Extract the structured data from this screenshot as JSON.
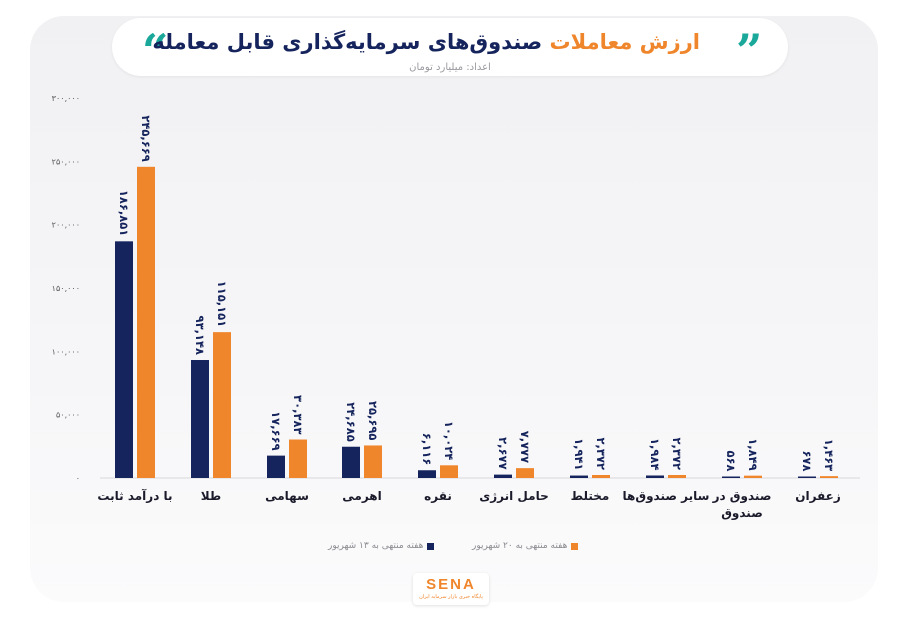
{
  "header": {
    "title_highlight": "ارزش معاملات",
    "title_rest": " صندوق‌های سرمایه‌گذاری قابل معامله",
    "subtitle": "اعداد: میلیارد تومان",
    "quote_left": "“",
    "quote_right": "”"
  },
  "legend": {
    "week13": "هفته منتهی به ۱۳ شهریور",
    "week20": "هفته منتهی به ۲۰ شهریور"
  },
  "logo": {
    "text": "SENA",
    "sub": "پایگاه خبری بازار سرمایه ایران"
  },
  "colors": {
    "week13": "#15245c",
    "week20": "#f0862b",
    "highlight": "#f0862b",
    "quote": "#1aa89a"
  },
  "chart_data": {
    "type": "bar",
    "categories": [
      "با درآمد ثابت",
      "طلا",
      "سهامی",
      "اهرمی",
      "نقره",
      "حامل انرژی",
      "مختلط",
      "سایر صندوق‌ها",
      "صندوق در صندوق",
      "زعفران"
    ],
    "series": [
      {
        "name": "هفته منتهی به ۱۳ شهریور",
        "values": [
          186851,
          93148,
          17669,
          24685,
          6116,
          2677,
          1941,
          1984,
          568,
          678
        ],
        "labels": [
          "۱۸۶,۸۵۱",
          "۹۳,۱۴۸",
          "۱۷,۶۶۹",
          "۲۴,۶۸۵",
          "۶,۱۱۶",
          "۲,۶۷۷",
          "۱,۹۴۱",
          "۱,۹۸۴",
          "۵۶۸",
          "۶۷۸"
        ]
      },
      {
        "name": "هفته منتهی به ۲۰ شهریور",
        "values": [
          245669,
          115151,
          30383,
          25695,
          10024,
          7777,
          2372,
          2372,
          1849,
          1463
        ],
        "labels": [
          "۲۴۵,۶۶۹",
          "۱۱۵,۱۵۱",
          "۳۰,۳۸۳",
          "۲۵,۶۹۵",
          "۱۰,۰۲۴",
          "۷,۷۷۷",
          "۲,۳۷۲",
          "۲,۳۷۲",
          "۱,۸۴۹",
          "۱,۴۶۳"
        ]
      }
    ],
    "y_ticks": [
      0,
      50000,
      100000,
      150000,
      200000,
      250000,
      300000
    ],
    "y_tick_labels": [
      "۰",
      "۵۰,۰۰۰",
      "۱۰۰,۰۰۰",
      "۱۵۰,۰۰۰",
      "۲۰۰,۰۰۰",
      "۲۵۰,۰۰۰",
      "۳۰۰,۰۰۰"
    ],
    "ylim": [
      0,
      300000
    ],
    "legend_position": "bottom-center",
    "grid": false
  }
}
